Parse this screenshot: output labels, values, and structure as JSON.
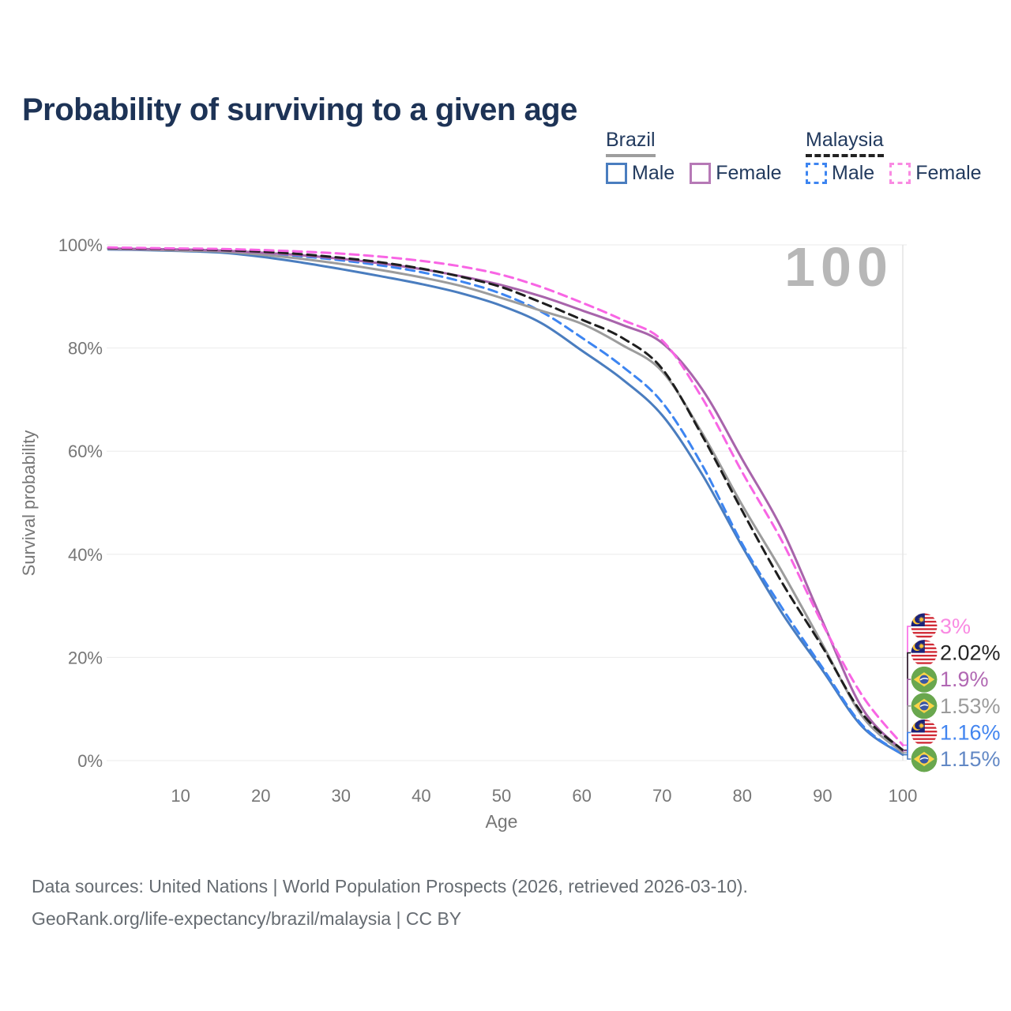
{
  "title": "Probability of surviving to a given age",
  "legend": {
    "groups": [
      {
        "label": "Brazil",
        "line_style": "solid",
        "underline_color": "#9e9e9e",
        "items": [
          {
            "label": "Male",
            "color": "#4a7dbf"
          },
          {
            "label": "Female",
            "color": "#b679b6"
          }
        ]
      },
      {
        "label": "Malaysia",
        "line_style": "dashed",
        "underline_color": "#222222",
        "items": [
          {
            "label": "Male",
            "color": "#3d85f1"
          },
          {
            "label": "Female",
            "color": "#f98ae2"
          }
        ]
      }
    ]
  },
  "chart_data": {
    "type": "line",
    "title": "Probability of surviving to a given age",
    "xlabel": "Age",
    "ylabel": "Survival probability",
    "xlim": [
      0,
      100
    ],
    "ylim": [
      0,
      100
    ],
    "grid": "horizontal",
    "legend_position": "top-right",
    "hover_age_indicator": "100",
    "x_ticks": [
      10,
      20,
      30,
      40,
      50,
      60,
      70,
      80,
      90,
      100
    ],
    "y_ticks": [
      {
        "value": 0,
        "label": "0%"
      },
      {
        "value": 20,
        "label": "20%"
      },
      {
        "value": 40,
        "label": "40%"
      },
      {
        "value": 60,
        "label": "60%"
      },
      {
        "value": 80,
        "label": "80%"
      },
      {
        "value": 100,
        "label": "100%"
      }
    ],
    "x": [
      1,
      5,
      10,
      15,
      20,
      25,
      30,
      35,
      40,
      45,
      50,
      55,
      60,
      65,
      70,
      75,
      80,
      85,
      90,
      95,
      100
    ],
    "series": [
      {
        "id": "malaysia-female",
        "name": "Malaysia Female",
        "country": "malaysia",
        "flag_icon": "malaysia-flag-icon",
        "color": "#f865e4",
        "label_color": "#f98ae2",
        "dashed": true,
        "end_label": "3%",
        "values": [
          99.5,
          99.4,
          99.3,
          99.2,
          99.0,
          98.7,
          98.3,
          97.7,
          96.9,
          95.8,
          94.2,
          91.8,
          88.8,
          85.5,
          81.5,
          70.3,
          55.9,
          42.4,
          26.5,
          12.5,
          3.0
        ]
      },
      {
        "id": "malaysia-all",
        "name": "Malaysia",
        "country": "malaysia",
        "flag_icon": "malaysia-flag-icon",
        "color": "#1e1e1e",
        "label_color": "#252525",
        "dashed": true,
        "end_label": "2.02%",
        "values": [
          99.4,
          99.3,
          99.2,
          99.0,
          98.7,
          98.2,
          97.5,
          96.6,
          95.4,
          93.8,
          91.8,
          88.8,
          85.5,
          82.0,
          76.0,
          63.0,
          48.4,
          34.4,
          22.0,
          9.0,
          2.02
        ]
      },
      {
        "id": "brazil-female",
        "name": "Brazil Female",
        "country": "brazil",
        "flag_icon": "brazil-flag-icon",
        "color": "#a864ab",
        "label_color": "#b168b3",
        "dashed": false,
        "end_label": "1.9%",
        "values": [
          99.3,
          99.2,
          99.1,
          98.9,
          98.5,
          98.0,
          97.3,
          96.4,
          95.3,
          93.9,
          92.2,
          90.0,
          87.3,
          84.5,
          81.0,
          72.0,
          58.4,
          44.7,
          27.0,
          10.0,
          1.9
        ]
      },
      {
        "id": "brazil-all",
        "name": "Brazil",
        "country": "brazil",
        "flag_icon": "brazil-flag-icon",
        "color": "#9c9c9c",
        "label_color": "#9b9b9b",
        "dashed": false,
        "end_label": "1.53%",
        "values": [
          99.2,
          99.1,
          98.9,
          98.7,
          98.1,
          97.3,
          96.3,
          95.1,
          93.7,
          92.0,
          89.7,
          87.2,
          84.7,
          80.6,
          75.5,
          63.5,
          49.5,
          36.5,
          22.5,
          8.5,
          1.53
        ]
      },
      {
        "id": "malaysia-male",
        "name": "Malaysia Male",
        "country": "malaysia",
        "flag_icon": "malaysia-flag-icon",
        "color": "#3d85f1",
        "label_color": "#4285f0",
        "dashed": true,
        "end_label": "1.16%",
        "values": [
          99.3,
          99.2,
          99.0,
          98.8,
          98.4,
          97.8,
          97.0,
          96.0,
          94.7,
          92.9,
          90.5,
          87.0,
          82.0,
          76.5,
          69.5,
          57.3,
          42.0,
          29.5,
          18.0,
          6.8,
          1.16
        ]
      },
      {
        "id": "brazil-male",
        "name": "Brazil Male",
        "country": "brazil",
        "flag_icon": "brazil-flag-icon",
        "color": "#4a7dbf",
        "label_color": "#6288c5",
        "dashed": false,
        "end_label": "1.15%",
        "values": [
          99.1,
          99.0,
          98.8,
          98.5,
          97.7,
          96.6,
          95.3,
          93.9,
          92.4,
          90.6,
          88.2,
          84.8,
          79.5,
          74.0,
          67.0,
          55.5,
          41.5,
          28.5,
          17.5,
          6.5,
          1.15
        ]
      }
    ]
  },
  "footer": {
    "line1": "Data sources: United Nations | World Population Prospects (2026, retrieved 2026-03-10).",
    "line2": "GeoRank.org/life-expectancy/brazil/malaysia | CC BY"
  },
  "colors": {
    "title": "#1d3356",
    "axis_text": "#767676",
    "gridline": "#ebebeb",
    "watermark": "#b7b7b7",
    "footer_text": "#666c72"
  }
}
